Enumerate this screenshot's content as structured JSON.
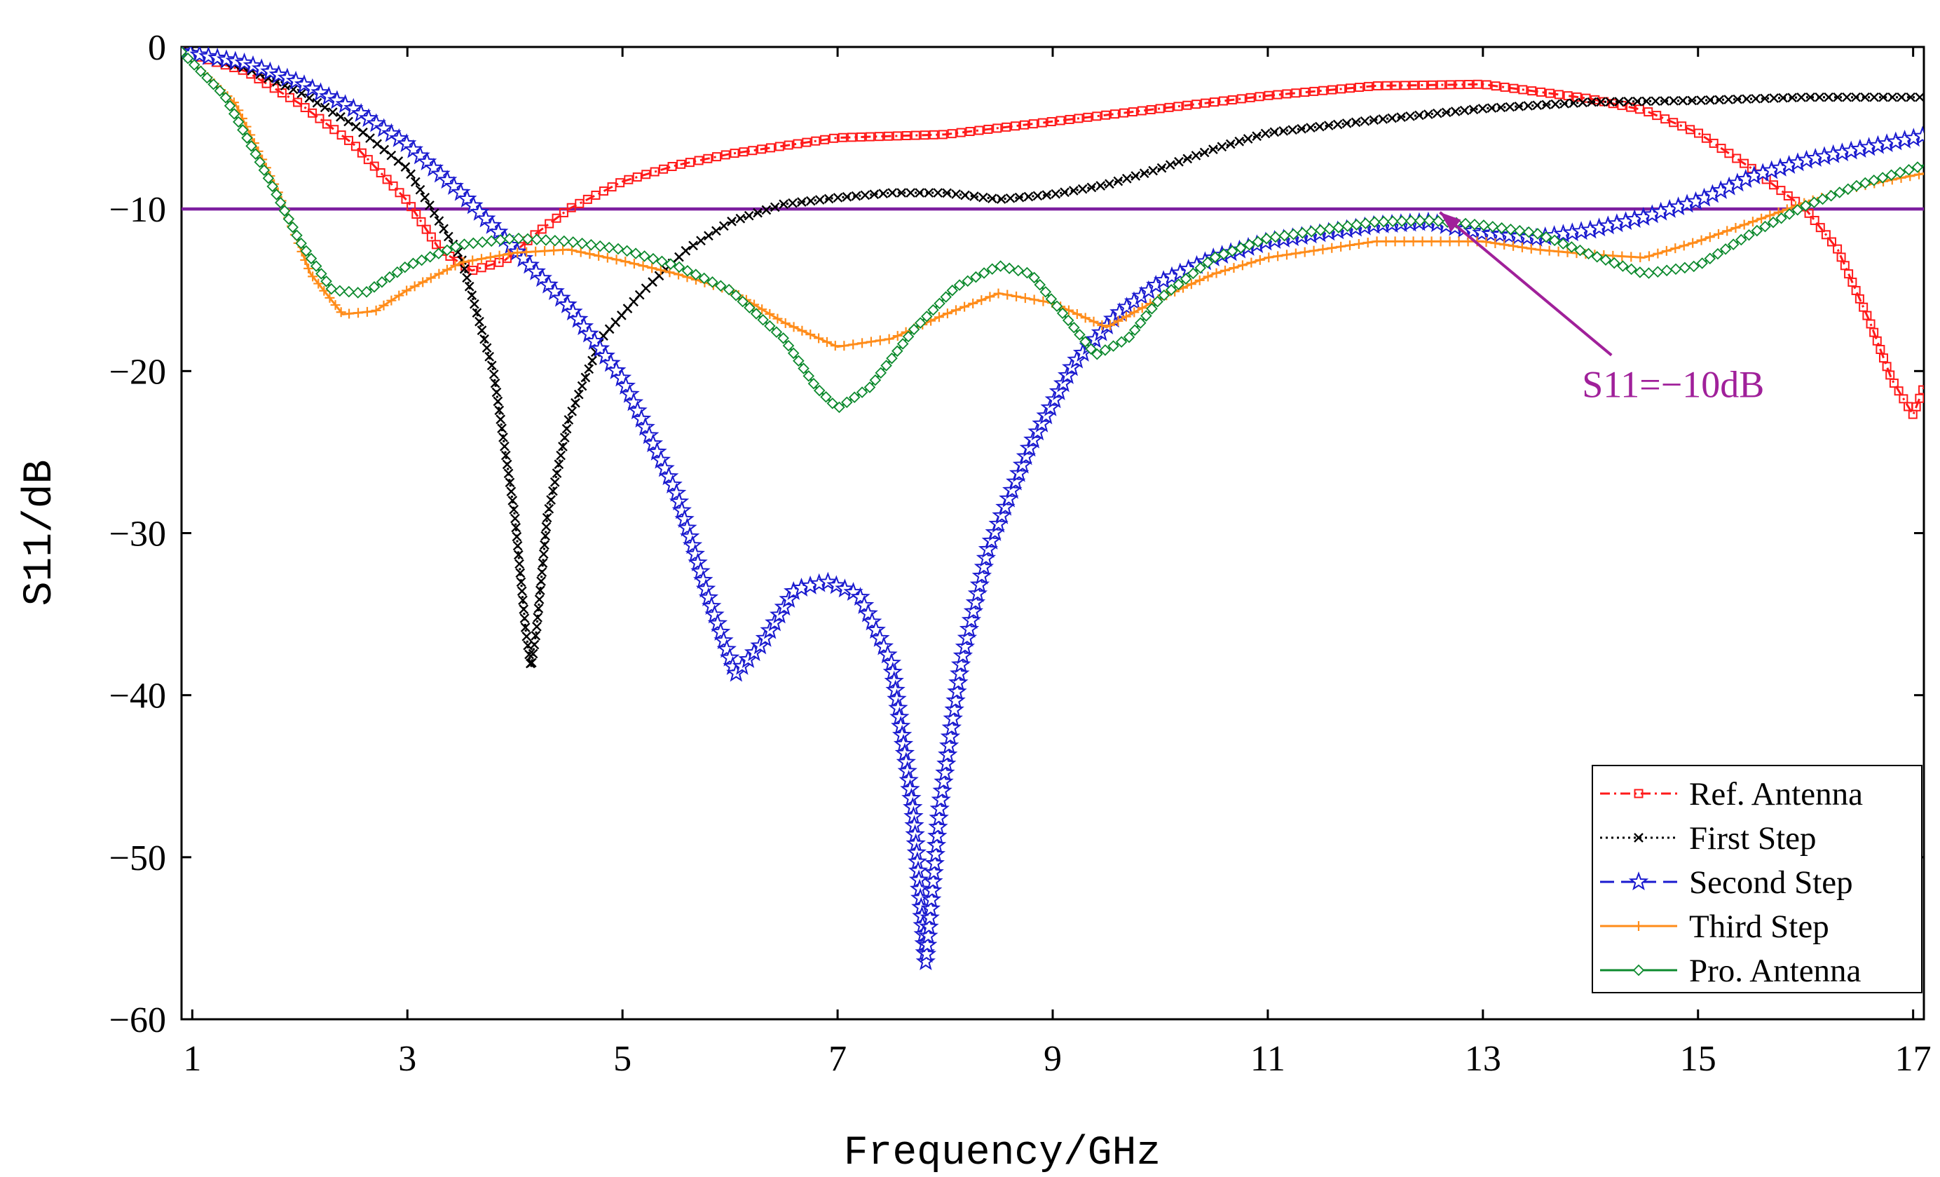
{
  "chart_data": {
    "type": "line",
    "xlabel": "Frequency/GHz",
    "ylabel": "S11/dB",
    "xlim": [
      0.9,
      17.1
    ],
    "ylim": [
      -60,
      0
    ],
    "x_ticks": [
      1,
      3,
      5,
      7,
      9,
      11,
      13,
      15,
      17
    ],
    "y_ticks": [
      0,
      -10,
      -20,
      -30,
      -40,
      -50,
      -60
    ],
    "x_tick_labels": [
      "1",
      "3",
      "5",
      "7",
      "9",
      "11",
      "13",
      "15",
      "17"
    ],
    "y_tick_labels": [
      "0",
      "−10",
      "−20",
      "−30",
      "−40",
      "−50",
      "−60"
    ],
    "legend_position": "bottom-right",
    "reference_line": {
      "y": -10,
      "color": "#7d1fa0"
    },
    "annotation": {
      "text": "S11=−10dB",
      "x": 14.0,
      "y": -19.8,
      "arrow_to": [
        12.6,
        -10.2
      ],
      "color": "#a0209a"
    },
    "series": [
      {
        "name": "Ref. Antenna",
        "color": "#ff1a1a",
        "marker": "square",
        "dash": "14,6,3,6",
        "points": [
          [
            0.9,
            -0.3
          ],
          [
            1.5,
            -1.5
          ],
          [
            2.0,
            -3.5
          ],
          [
            2.5,
            -6.0
          ],
          [
            3.0,
            -9.5
          ],
          [
            3.3,
            -12.5
          ],
          [
            3.6,
            -13.8
          ],
          [
            3.9,
            -13.2
          ],
          [
            4.2,
            -11.5
          ],
          [
            4.5,
            -10.0
          ],
          [
            5.0,
            -8.3
          ],
          [
            5.5,
            -7.3
          ],
          [
            6.0,
            -6.6
          ],
          [
            7.0,
            -5.6
          ],
          [
            8.0,
            -5.4
          ],
          [
            9.0,
            -4.6
          ],
          [
            10.0,
            -3.8
          ],
          [
            11.0,
            -3.0
          ],
          [
            12.0,
            -2.4
          ],
          [
            13.0,
            -2.3
          ],
          [
            14.0,
            -3.2
          ],
          [
            14.5,
            -3.9
          ],
          [
            15.0,
            -5.3
          ],
          [
            15.5,
            -7.5
          ],
          [
            16.0,
            -10.0
          ],
          [
            16.3,
            -12.5
          ],
          [
            16.6,
            -17.0
          ],
          [
            16.8,
            -20.5
          ],
          [
            17.0,
            -22.7
          ],
          [
            17.1,
            -21.0
          ]
        ]
      },
      {
        "name": "First Step",
        "color": "#000000",
        "marker": "x",
        "dash": "3,5",
        "points": [
          [
            0.9,
            -0.3
          ],
          [
            1.5,
            -1.3
          ],
          [
            2.0,
            -2.8
          ],
          [
            2.5,
            -4.8
          ],
          [
            3.0,
            -7.5
          ],
          [
            3.5,
            -13.0
          ],
          [
            3.8,
            -20.0
          ],
          [
            4.0,
            -29.0
          ],
          [
            4.1,
            -36.0
          ],
          [
            4.15,
            -38.3
          ],
          [
            4.2,
            -36.0
          ],
          [
            4.3,
            -29.0
          ],
          [
            4.5,
            -23.0
          ],
          [
            4.8,
            -18.0
          ],
          [
            5.2,
            -15.0
          ],
          [
            5.6,
            -12.5
          ],
          [
            6.0,
            -10.8
          ],
          [
            6.5,
            -9.7
          ],
          [
            7.0,
            -9.3
          ],
          [
            7.5,
            -9.0
          ],
          [
            8.0,
            -9.0
          ],
          [
            8.5,
            -9.4
          ],
          [
            9.0,
            -9.1
          ],
          [
            9.5,
            -8.5
          ],
          [
            10.0,
            -7.5
          ],
          [
            10.5,
            -6.3
          ],
          [
            11.0,
            -5.3
          ],
          [
            12.0,
            -4.5
          ],
          [
            13.0,
            -3.8
          ],
          [
            14.0,
            -3.4
          ],
          [
            15.0,
            -3.3
          ],
          [
            16.0,
            -3.1
          ],
          [
            17.1,
            -3.1
          ]
        ]
      },
      {
        "name": "Second Step",
        "color": "#1a1acf",
        "marker": "star",
        "dash": "20,10",
        "points": [
          [
            0.9,
            -0.3
          ],
          [
            1.5,
            -1.0
          ],
          [
            2.0,
            -2.2
          ],
          [
            2.5,
            -3.8
          ],
          [
            3.0,
            -6.0
          ],
          [
            3.5,
            -9.0
          ],
          [
            4.0,
            -12.5
          ],
          [
            4.5,
            -16.0
          ],
          [
            5.0,
            -20.5
          ],
          [
            5.5,
            -27.5
          ],
          [
            5.8,
            -34.0
          ],
          [
            6.05,
            -38.7
          ],
          [
            6.3,
            -36.8
          ],
          [
            6.6,
            -33.5
          ],
          [
            6.9,
            -33.0
          ],
          [
            7.2,
            -33.8
          ],
          [
            7.5,
            -38.0
          ],
          [
            7.7,
            -47.0
          ],
          [
            7.82,
            -56.5
          ],
          [
            7.95,
            -47.0
          ],
          [
            8.15,
            -38.0
          ],
          [
            8.4,
            -31.0
          ],
          [
            8.8,
            -24.5
          ],
          [
            9.2,
            -19.5
          ],
          [
            9.6,
            -16.5
          ],
          [
            10.0,
            -14.5
          ],
          [
            10.5,
            -13.0
          ],
          [
            11.0,
            -12.0
          ],
          [
            12.0,
            -11.0
          ],
          [
            12.5,
            -10.8
          ],
          [
            13.0,
            -11.5
          ],
          [
            13.5,
            -11.8
          ],
          [
            14.0,
            -11.3
          ],
          [
            14.5,
            -10.5
          ],
          [
            15.0,
            -9.5
          ],
          [
            15.5,
            -8.0
          ],
          [
            16.0,
            -7.0
          ],
          [
            17.1,
            -5.5
          ]
        ]
      },
      {
        "name": "Third Step",
        "color": "#ff8c1a",
        "marker": "plus",
        "dash": "",
        "points": [
          [
            0.9,
            -0.3
          ],
          [
            1.4,
            -3.5
          ],
          [
            1.8,
            -9.0
          ],
          [
            2.1,
            -14.0
          ],
          [
            2.4,
            -16.5
          ],
          [
            2.7,
            -16.3
          ],
          [
            3.0,
            -15.0
          ],
          [
            3.5,
            -13.3
          ],
          [
            4.0,
            -12.7
          ],
          [
            4.5,
            -12.5
          ],
          [
            5.0,
            -13.2
          ],
          [
            5.5,
            -14.0
          ],
          [
            6.0,
            -15.0
          ],
          [
            6.5,
            -17.0
          ],
          [
            7.0,
            -18.5
          ],
          [
            7.5,
            -18.0
          ],
          [
            8.0,
            -16.5
          ],
          [
            8.5,
            -15.2
          ],
          [
            9.0,
            -15.8
          ],
          [
            9.5,
            -17.3
          ],
          [
            10.0,
            -15.5
          ],
          [
            10.5,
            -14.0
          ],
          [
            11.0,
            -13.0
          ],
          [
            12.0,
            -12.0
          ],
          [
            13.0,
            -12.0
          ],
          [
            13.5,
            -12.5
          ],
          [
            14.0,
            -12.8
          ],
          [
            14.5,
            -13.0
          ],
          [
            15.0,
            -12.0
          ],
          [
            15.5,
            -10.8
          ],
          [
            16.0,
            -9.6
          ],
          [
            16.5,
            -8.6
          ],
          [
            17.1,
            -7.8
          ]
        ]
      },
      {
        "name": "Pro. Antenna",
        "color": "#0d8a2e",
        "marker": "diamond",
        "dash": "",
        "points": [
          [
            0.9,
            -0.3
          ],
          [
            1.3,
            -3.0
          ],
          [
            1.7,
            -8.0
          ],
          [
            2.0,
            -12.0
          ],
          [
            2.3,
            -15.0
          ],
          [
            2.6,
            -15.2
          ],
          [
            3.0,
            -13.5
          ],
          [
            3.5,
            -12.2
          ],
          [
            4.0,
            -11.8
          ],
          [
            4.5,
            -12.0
          ],
          [
            5.0,
            -12.5
          ],
          [
            5.5,
            -13.5
          ],
          [
            6.0,
            -15.0
          ],
          [
            6.5,
            -18.0
          ],
          [
            6.8,
            -21.0
          ],
          [
            7.0,
            -22.3
          ],
          [
            7.3,
            -21.0
          ],
          [
            7.7,
            -17.5
          ],
          [
            8.1,
            -14.8
          ],
          [
            8.5,
            -13.5
          ],
          [
            8.8,
            -14.0
          ],
          [
            9.1,
            -16.5
          ],
          [
            9.4,
            -19.0
          ],
          [
            9.7,
            -18.0
          ],
          [
            10.0,
            -15.5
          ],
          [
            10.5,
            -13.0
          ],
          [
            11.0,
            -11.8
          ],
          [
            12.0,
            -10.8
          ],
          [
            12.5,
            -10.7
          ],
          [
            13.0,
            -11.0
          ],
          [
            13.5,
            -11.5
          ],
          [
            14.0,
            -12.8
          ],
          [
            14.5,
            -14.0
          ],
          [
            15.0,
            -13.5
          ],
          [
            15.5,
            -11.5
          ],
          [
            16.0,
            -9.8
          ],
          [
            16.5,
            -8.5
          ],
          [
            17.1,
            -7.3
          ]
        ]
      }
    ]
  }
}
